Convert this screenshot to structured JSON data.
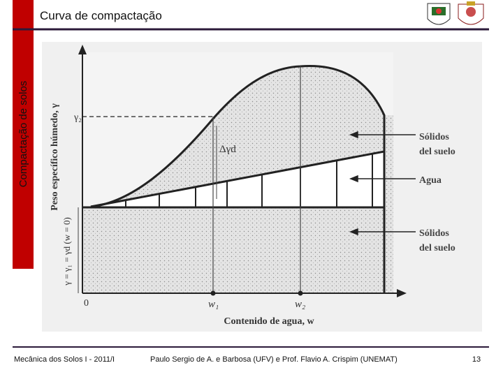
{
  "header": {
    "title": "Curva de compactação",
    "side_label": "Compactação de solos"
  },
  "diagram": {
    "y_axis_label": "Peso específico húmedo, γ",
    "gamma2": "γ₂",
    "delta_gamma": "Δγd",
    "gamma_left": "γ = γ₁ = γd (w = 0)",
    "origin": "0",
    "w1": "w₁",
    "w2": "w₂",
    "x_axis_label": "Contenido de agua, w",
    "solids_top": [
      "Sólidos",
      "del suelo"
    ],
    "water": "Agua",
    "solids_bottom": [
      "Sólidos",
      "del suelo"
    ]
  },
  "footer": {
    "course": "Mecânica dos Solos I - 2011/I",
    "authors": "Paulo Sergio de A. e Barbosa (UFV) e Prof. Flavio  A. Crispim (UNEMAT)",
    "page": "13"
  }
}
